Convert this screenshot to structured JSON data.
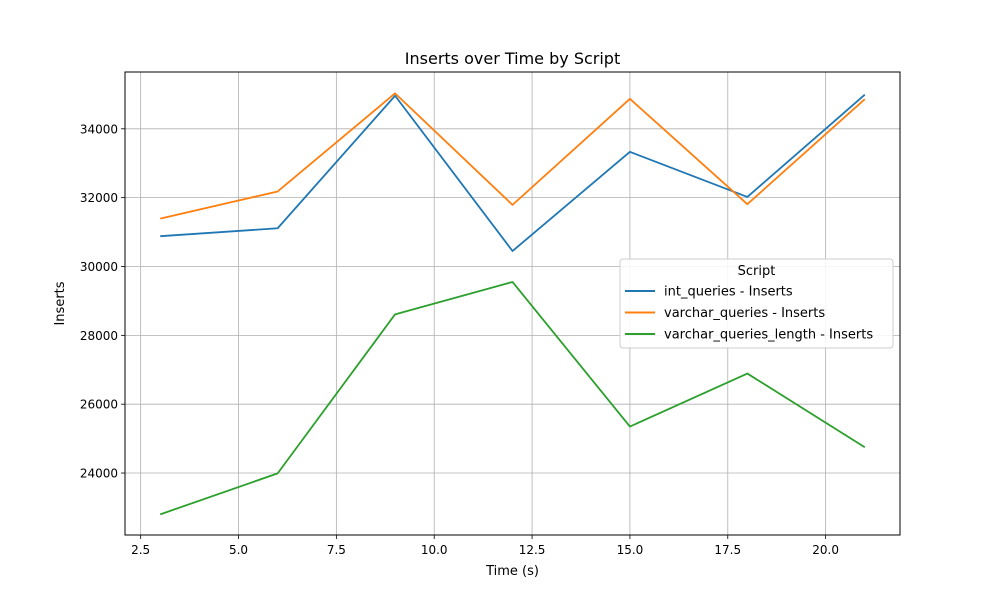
{
  "chart_data": {
    "type": "line",
    "title": "Inserts over Time by Script",
    "xlabel": "Time (s)",
    "ylabel": "Inserts",
    "xlim": [
      2.1,
      21.9
    ],
    "ylim": [
      22200,
      35650
    ],
    "xticks": [
      2.5,
      5.0,
      7.5,
      10.0,
      12.5,
      15.0,
      17.5,
      20.0
    ],
    "xtick_labels": [
      "2.5",
      "5.0",
      "7.5",
      "10.0",
      "12.5",
      "15.0",
      "17.5",
      "20.0"
    ],
    "yticks": [
      24000,
      26000,
      28000,
      30000,
      32000,
      34000
    ],
    "ytick_labels": [
      "24000",
      "26000",
      "28000",
      "30000",
      "32000",
      "34000"
    ],
    "grid": true,
    "x": [
      3,
      6,
      9,
      12,
      15,
      18,
      21
    ],
    "series": [
      {
        "name": "int_queries - Inserts",
        "color": "#1f77b4",
        "values": [
          30880,
          31110,
          34960,
          30450,
          33330,
          32020,
          34990
        ]
      },
      {
        "name": "varchar_queries - Inserts",
        "color": "#ff7f0e",
        "values": [
          31390,
          32180,
          35030,
          31790,
          34870,
          31810,
          34860
        ]
      },
      {
        "name": "varchar_queries_length - Inserts",
        "color": "#2ca02c",
        "values": [
          22800,
          23990,
          28610,
          29550,
          25350,
          26890,
          24750
        ]
      }
    ],
    "legend": {
      "title": "Script",
      "placement": "center-right"
    }
  }
}
